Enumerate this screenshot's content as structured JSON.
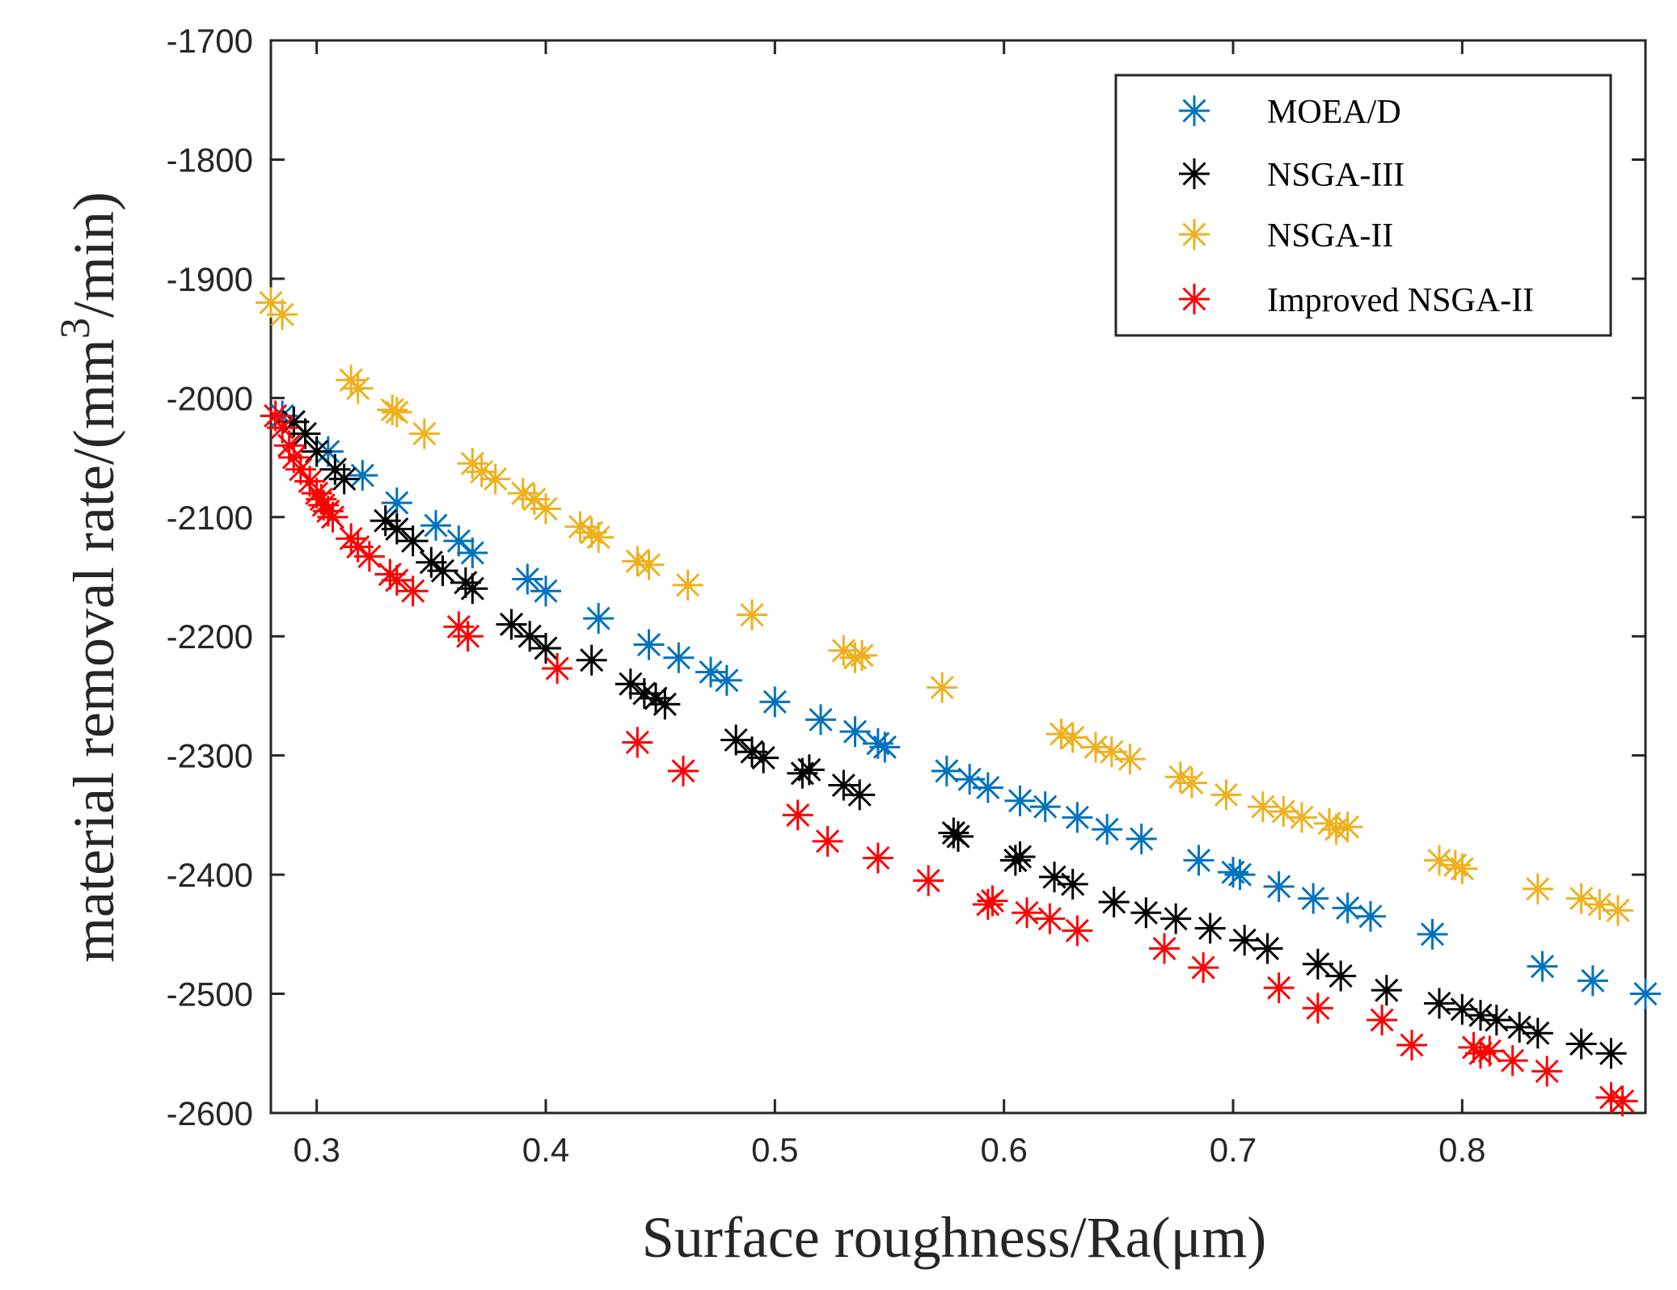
{
  "chart_data": {
    "type": "scatter",
    "xlabel": "Surface roughness/Ra(μm)",
    "ylabel_parts": [
      "material removal rate/(mm",
      "3",
      "/min)"
    ],
    "xlim": [
      0.28,
      0.88
    ],
    "ylim": [
      -2600,
      -1700
    ],
    "xticks": [
      0.3,
      0.4,
      0.5,
      0.6,
      0.7,
      0.8
    ],
    "xtick_labels": [
      "0.3",
      "0.4",
      "0.5",
      "0.6",
      "0.7",
      "0.8"
    ],
    "yticks": [
      -1700,
      -1800,
      -1900,
      -2000,
      -2100,
      -2200,
      -2300,
      -2400,
      -2500,
      -2600
    ],
    "ytick_labels": [
      "-1700",
      "-1800",
      "-1900",
      "-2000",
      "-2100",
      "-2200",
      "-2300",
      "-2400",
      "-2500",
      "-2600"
    ],
    "grid": false,
    "legend_position": "top-right",
    "marker": "asterisk",
    "series": [
      {
        "name": "MOEA/D",
        "color": "#0072BD",
        "points": [
          [
            0.285,
            -2015
          ],
          [
            0.29,
            -2020
          ],
          [
            0.305,
            -2045
          ],
          [
            0.32,
            -2065
          ],
          [
            0.335,
            -2088
          ],
          [
            0.352,
            -2107
          ],
          [
            0.362,
            -2120
          ],
          [
            0.368,
            -2130
          ],
          [
            0.392,
            -2152
          ],
          [
            0.4,
            -2162
          ],
          [
            0.423,
            -2185
          ],
          [
            0.445,
            -2207
          ],
          [
            0.458,
            -2218
          ],
          [
            0.472,
            -2230
          ],
          [
            0.479,
            -2237
          ],
          [
            0.5,
            -2255
          ],
          [
            0.52,
            -2270
          ],
          [
            0.535,
            -2280
          ],
          [
            0.545,
            -2290
          ],
          [
            0.548,
            -2293
          ],
          [
            0.575,
            -2313
          ],
          [
            0.585,
            -2320
          ],
          [
            0.593,
            -2327
          ],
          [
            0.607,
            -2338
          ],
          [
            0.618,
            -2343
          ],
          [
            0.632,
            -2352
          ],
          [
            0.645,
            -2362
          ],
          [
            0.66,
            -2370
          ],
          [
            0.685,
            -2388
          ],
          [
            0.7,
            -2398
          ],
          [
            0.703,
            -2400
          ],
          [
            0.72,
            -2410
          ],
          [
            0.735,
            -2420
          ],
          [
            0.75,
            -2428
          ],
          [
            0.76,
            -2435
          ],
          [
            0.787,
            -2450
          ],
          [
            0.835,
            -2477
          ],
          [
            0.857,
            -2489
          ],
          [
            0.88,
            -2500
          ]
        ]
      },
      {
        "name": "NSGA-III",
        "color": "#000000",
        "points": [
          [
            0.29,
            -2020
          ],
          [
            0.295,
            -2030
          ],
          [
            0.3,
            -2045
          ],
          [
            0.308,
            -2060
          ],
          [
            0.312,
            -2068
          ],
          [
            0.33,
            -2103
          ],
          [
            0.335,
            -2110
          ],
          [
            0.342,
            -2120
          ],
          [
            0.35,
            -2138
          ],
          [
            0.355,
            -2145
          ],
          [
            0.365,
            -2155
          ],
          [
            0.368,
            -2160
          ],
          [
            0.385,
            -2190
          ],
          [
            0.393,
            -2200
          ],
          [
            0.4,
            -2210
          ],
          [
            0.42,
            -2220
          ],
          [
            0.437,
            -2240
          ],
          [
            0.443,
            -2248
          ],
          [
            0.448,
            -2252
          ],
          [
            0.452,
            -2257
          ],
          [
            0.483,
            -2287
          ],
          [
            0.49,
            -2297
          ],
          [
            0.495,
            -2302
          ],
          [
            0.512,
            -2315
          ],
          [
            0.515,
            -2312
          ],
          [
            0.53,
            -2325
          ],
          [
            0.537,
            -2333
          ],
          [
            0.578,
            -2365
          ],
          [
            0.58,
            -2368
          ],
          [
            0.605,
            -2388
          ],
          [
            0.607,
            -2385
          ],
          [
            0.622,
            -2402
          ],
          [
            0.63,
            -2408
          ],
          [
            0.648,
            -2423
          ],
          [
            0.662,
            -2432
          ],
          [
            0.675,
            -2437
          ],
          [
            0.69,
            -2445
          ],
          [
            0.705,
            -2455
          ],
          [
            0.715,
            -2462
          ],
          [
            0.737,
            -2475
          ],
          [
            0.747,
            -2485
          ],
          [
            0.767,
            -2497
          ],
          [
            0.79,
            -2508
          ],
          [
            0.8,
            -2513
          ],
          [
            0.808,
            -2518
          ],
          [
            0.815,
            -2522
          ],
          [
            0.825,
            -2528
          ],
          [
            0.833,
            -2533
          ],
          [
            0.852,
            -2542
          ],
          [
            0.865,
            -2550
          ]
        ]
      },
      {
        "name": "NSGA-II",
        "color": "#EDB120",
        "points": [
          [
            0.28,
            -1920
          ],
          [
            0.285,
            -1930
          ],
          [
            0.315,
            -1985
          ],
          [
            0.318,
            -1992
          ],
          [
            0.333,
            -2010
          ],
          [
            0.335,
            -2012
          ],
          [
            0.347,
            -2030
          ],
          [
            0.368,
            -2055
          ],
          [
            0.372,
            -2062
          ],
          [
            0.378,
            -2068
          ],
          [
            0.39,
            -2080
          ],
          [
            0.395,
            -2085
          ],
          [
            0.4,
            -2093
          ],
          [
            0.415,
            -2108
          ],
          [
            0.42,
            -2113
          ],
          [
            0.423,
            -2117
          ],
          [
            0.44,
            -2137
          ],
          [
            0.445,
            -2140
          ],
          [
            0.462,
            -2157
          ],
          [
            0.49,
            -2182
          ],
          [
            0.53,
            -2212
          ],
          [
            0.535,
            -2218
          ],
          [
            0.538,
            -2216
          ],
          [
            0.573,
            -2243
          ],
          [
            0.625,
            -2282
          ],
          [
            0.63,
            -2285
          ],
          [
            0.64,
            -2293
          ],
          [
            0.647,
            -2297
          ],
          [
            0.655,
            -2303
          ],
          [
            0.677,
            -2318
          ],
          [
            0.682,
            -2323
          ],
          [
            0.697,
            -2333
          ],
          [
            0.713,
            -2343
          ],
          [
            0.722,
            -2347
          ],
          [
            0.73,
            -2352
          ],
          [
            0.742,
            -2357
          ],
          [
            0.745,
            -2362
          ],
          [
            0.75,
            -2360
          ],
          [
            0.79,
            -2388
          ],
          [
            0.797,
            -2392
          ],
          [
            0.8,
            -2395
          ],
          [
            0.833,
            -2412
          ],
          [
            0.852,
            -2420
          ],
          [
            0.86,
            -2425
          ],
          [
            0.868,
            -2430
          ]
        ]
      },
      {
        "name": "Improved NSGA-II",
        "color": "#FF0000",
        "points": [
          [
            0.282,
            -2015
          ],
          [
            0.285,
            -2025
          ],
          [
            0.288,
            -2040
          ],
          [
            0.29,
            -2050
          ],
          [
            0.293,
            -2060
          ],
          [
            0.297,
            -2070
          ],
          [
            0.3,
            -2080
          ],
          [
            0.302,
            -2085
          ],
          [
            0.303,
            -2090
          ],
          [
            0.305,
            -2095
          ],
          [
            0.307,
            -2100
          ],
          [
            0.315,
            -2118
          ],
          [
            0.318,
            -2125
          ],
          [
            0.323,
            -2133
          ],
          [
            0.332,
            -2148
          ],
          [
            0.335,
            -2153
          ],
          [
            0.342,
            -2162
          ],
          [
            0.362,
            -2192
          ],
          [
            0.366,
            -2200
          ],
          [
            0.405,
            -2227
          ],
          [
            0.44,
            -2289
          ],
          [
            0.46,
            -2313
          ],
          [
            0.51,
            -2350
          ],
          [
            0.523,
            -2372
          ],
          [
            0.545,
            -2386
          ],
          [
            0.567,
            -2405
          ],
          [
            0.593,
            -2425
          ],
          [
            0.595,
            -2422
          ],
          [
            0.61,
            -2432
          ],
          [
            0.62,
            -2437
          ],
          [
            0.632,
            -2447
          ],
          [
            0.67,
            -2462
          ],
          [
            0.687,
            -2478
          ],
          [
            0.72,
            -2495
          ],
          [
            0.737,
            -2512
          ],
          [
            0.765,
            -2522
          ],
          [
            0.778,
            -2543
          ],
          [
            0.805,
            -2545
          ],
          [
            0.808,
            -2550
          ],
          [
            0.812,
            -2548
          ],
          [
            0.822,
            -2556
          ],
          [
            0.837,
            -2565
          ],
          [
            0.865,
            -2587
          ],
          [
            0.87,
            -2590
          ]
        ]
      }
    ]
  }
}
